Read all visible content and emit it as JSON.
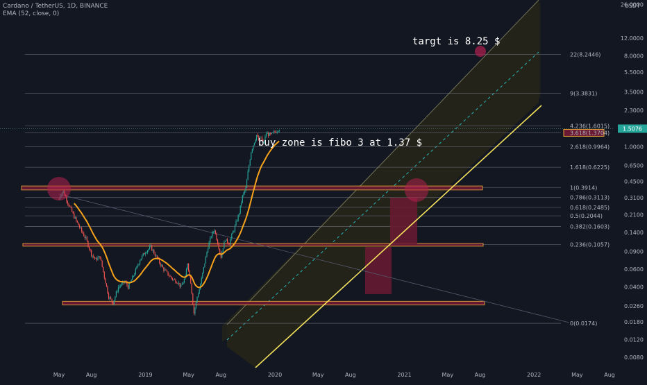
{
  "header": {
    "symbol_line": "Cardano / TetherUS, 1D, BINANCE",
    "indicator_line": "EMA (52, close, 0)"
  },
  "price_axis": {
    "unit": "USDT",
    "ticks": [
      "26.0000",
      "12.0000",
      "8.0000",
      "5.5000",
      "3.5000",
      "2.3000",
      "1.0000",
      "0.6500",
      "0.4500",
      "0.3100",
      "0.2100",
      "0.1400",
      "0.0900",
      "0.0600",
      "0.0400",
      "0.0260",
      "0.0180",
      "0.0120",
      "0.0080"
    ],
    "tick_values": [
      26,
      12,
      8,
      5.5,
      3.5,
      2.3,
      1.0,
      0.65,
      0.45,
      0.31,
      0.21,
      0.14,
      0.09,
      0.06,
      0.04,
      0.026,
      0.018,
      0.012,
      0.008
    ],
    "current_price_label": "1.5076",
    "current_price": 1.5076
  },
  "time_axis": {
    "labels": [
      "May",
      "Aug",
      "2019",
      "May",
      "Aug",
      "2020",
      "May",
      "Aug",
      "2021",
      "May",
      "Aug",
      "2022",
      "May",
      "Aug"
    ]
  },
  "fib_levels": [
    {
      "label": "22(8.2446)",
      "value": 8.2446
    },
    {
      "label": "9(3.3831)",
      "value": 3.3831
    },
    {
      "label": "4.236(1.6015)",
      "value": 1.6015
    },
    {
      "label": "3.618(1.3704)",
      "value": 1.3704,
      "highlight": true
    },
    {
      "label": "2.618(0.9964)",
      "value": 0.9964
    },
    {
      "label": "1.618(0.6225)",
      "value": 0.6225
    },
    {
      "label": "1(0.3914)",
      "value": 0.3914
    },
    {
      "label": "0.786(0.3113)",
      "value": 0.3113
    },
    {
      "label": "0.618(0.2485)",
      "value": 0.2485
    },
    {
      "label": "0.5(0.2044)",
      "value": 0.2044
    },
    {
      "label": "0.382(0.1603)",
      "value": 0.1603
    },
    {
      "label": "0.236(0.1057)",
      "value": 0.1057
    },
    {
      "label": "0(0.0174)",
      "value": 0.0174
    }
  ],
  "annotations": {
    "target": "targt is 8.25 $",
    "buy_zone": "buy zone is fibo 3 at 1.37 $"
  },
  "colors": {
    "background": "#131722",
    "candle_up": "#26a69a",
    "candle_down": "#ef5350",
    "ema": "#f7a21b",
    "trendline": "#f5e25b",
    "zone_fill": "#6b1a33",
    "zone_border": "#e8a33a",
    "circle": "#b3204f",
    "channel_fill": "#2a2a1a",
    "price_badge": "#26a69a"
  },
  "chart_data": {
    "type": "candlestick",
    "title": "Cardano / TetherUS, 1D, BINANCE",
    "scale": "log",
    "ylim": [
      0.0075,
      27
    ],
    "x_labels": [
      "May",
      "Aug",
      "2019",
      "May",
      "Aug",
      "2020",
      "May",
      "Aug",
      "2021",
      "May",
      "Aug",
      "2022",
      "May",
      "Aug"
    ],
    "price_path": {
      "x": [
        0,
        0.1,
        0.4,
        0.8,
        1.4,
        2,
        2.5,
        3,
        3.4,
        3.8,
        4.3,
        4.6,
        5,
        5.5,
        6.1,
        6.4,
        7,
        7.5,
        8,
        8.5,
        9,
        9.6,
        10,
        10.5,
        11,
        11.3,
        11.7,
        11.9,
        12.2,
        12.5,
        12.8,
        13,
        13.2,
        13.5,
        13.8,
        14.1,
        14.4,
        14.8,
        15,
        15.2,
        15.4,
        15.5,
        15.8,
        16,
        16.3,
        16.7,
        17,
        17.3,
        17.5,
        17.8,
        18.3,
        18.5,
        18.7,
        18.9,
        19.2,
        19.6,
        20,
        20.4
      ],
      "y": [
        0.3,
        0.33,
        0.36,
        0.28,
        0.2,
        0.15,
        0.12,
        0.085,
        0.075,
        0.08,
        0.045,
        0.032,
        0.028,
        0.04,
        0.045,
        0.04,
        0.055,
        0.075,
        0.09,
        0.1,
        0.08,
        0.062,
        0.055,
        0.048,
        0.045,
        0.04,
        0.05,
        0.07,
        0.045,
        0.022,
        0.032,
        0.038,
        0.048,
        0.07,
        0.1,
        0.13,
        0.15,
        0.1,
        0.08,
        0.1,
        0.12,
        0.115,
        0.11,
        0.13,
        0.16,
        0.22,
        0.32,
        0.38,
        0.55,
        0.9,
        1.3,
        1.15,
        1.25,
        1.05,
        1.35,
        1.3,
        1.4,
        1.5076
      ]
    },
    "ema": {
      "name": "EMA (52, close, 0)"
    },
    "zones": [
      {
        "low": 0.37,
        "high": 0.405,
        "x_start": 0,
        "x_end": 23
      },
      {
        "low": 0.102,
        "high": 0.1085,
        "x_start": 0,
        "x_end": 23
      },
      {
        "low": 0.0265,
        "high": 0.0288,
        "x_start": 2,
        "x_end": 23
      },
      {
        "low": 1.33,
        "high": 1.41,
        "x_start": 28,
        "x_end": 29
      },
      {
        "low": 0.034,
        "high": 0.1,
        "x_start": 17.2,
        "x_end": 18.5
      },
      {
        "low": 0.105,
        "high": 0.31,
        "x_start": 18.5,
        "x_end": 19.8
      }
    ]
  }
}
